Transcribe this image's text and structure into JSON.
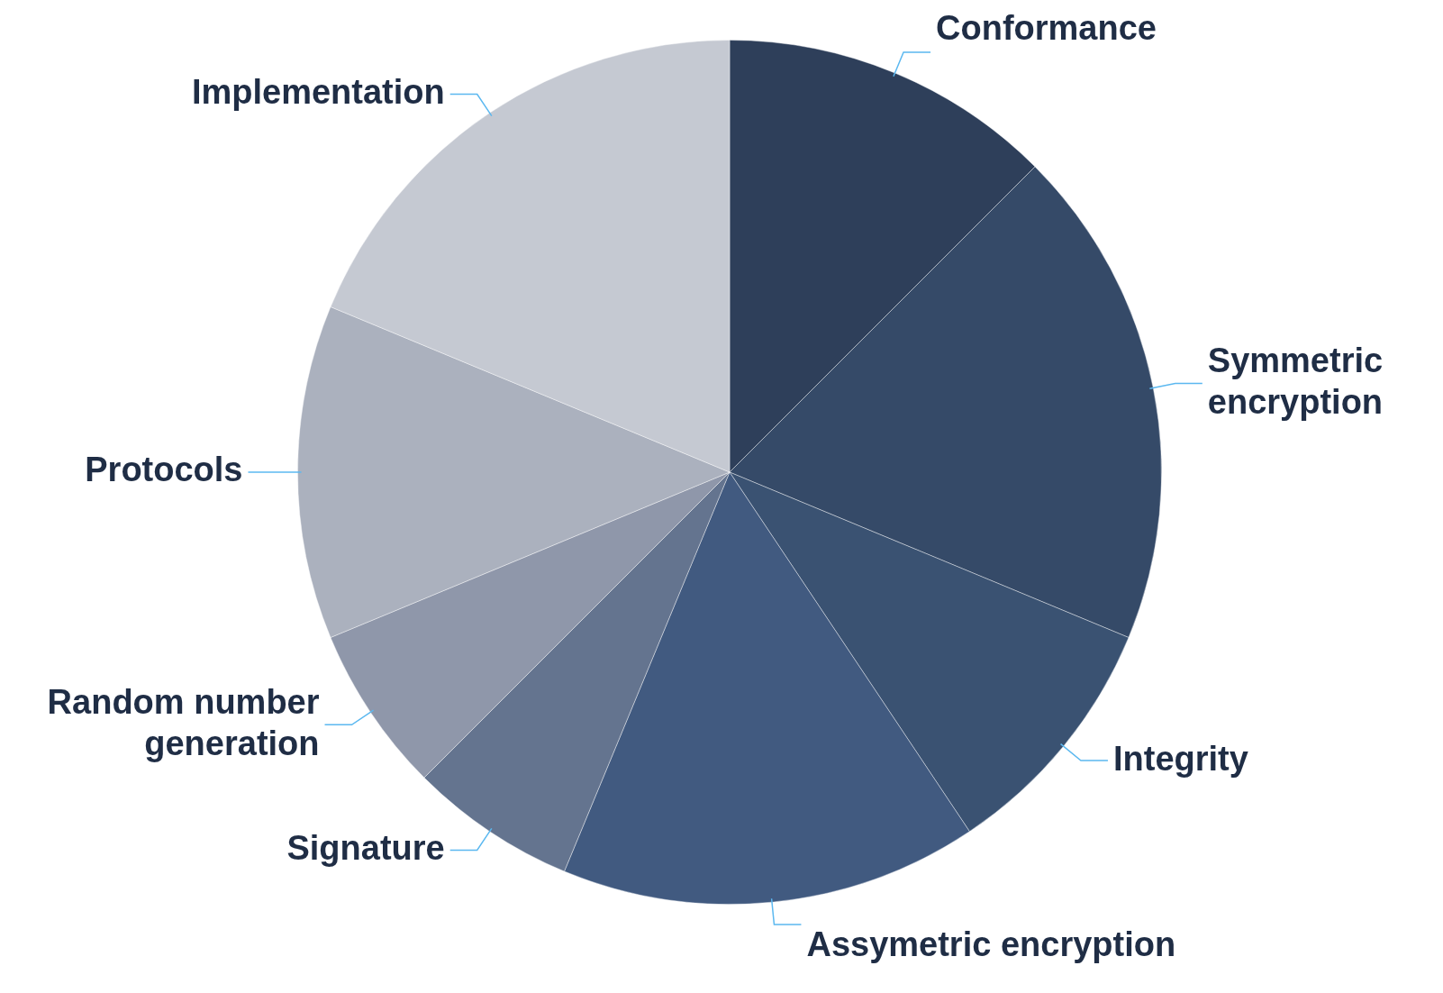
{
  "chart_data": {
    "type": "pie",
    "categories": [
      "Conformance",
      "Symmetric encryption",
      "Integrity",
      "Assymetric encryption",
      "Signature",
      "Random number generation",
      "Protocols",
      "Implementation"
    ],
    "values": [
      12.5,
      18.75,
      9.375,
      15.625,
      6.25,
      6.25,
      12.5,
      18.75
    ],
    "colors": [
      "#2e3f5a",
      "#354a68",
      "#3a5272",
      "#415a80",
      "#64748f",
      "#8f97aa",
      "#abb1be",
      "#c5c9d2"
    ],
    "legend": false
  }
}
